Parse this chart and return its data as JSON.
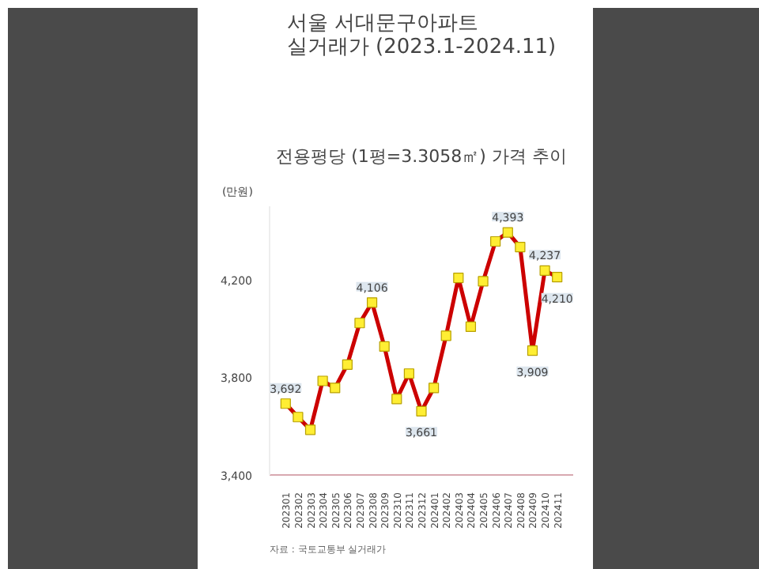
{
  "chart_data": {
    "type": "line",
    "title": "서울 서대문구아파트\n실거래가 (2023.1-2024.11)",
    "subtitle": "전용평당 (1평=3.3058㎡) 가격 추이",
    "ylabel": "(만원)",
    "categories": [
      "202301",
      "202302",
      "202303",
      "202304",
      "202305",
      "202306",
      "202307",
      "202308",
      "202309",
      "202310",
      "202311",
      "202312",
      "202401",
      "202402",
      "202403",
      "202404",
      "202405",
      "202406",
      "202407",
      "202408",
      "202409",
      "202410",
      "202411"
    ],
    "series": [
      {
        "color": "#cc0000",
        "values": [
          3692,
          3637,
          3585,
          3785,
          3756,
          3852,
          4022,
          4106,
          3926,
          3711,
          3815,
          3661,
          3756,
          3970,
          4207,
          4007,
          4193,
          4356,
          4393,
          4333,
          3909,
          4237,
          4210
        ],
        "value_labels": [
          "3,692",
          null,
          null,
          null,
          null,
          null,
          null,
          "4,106",
          null,
          null,
          null,
          "3,661",
          null,
          null,
          null,
          null,
          null,
          null,
          "4,393",
          null,
          "3,909",
          "4,237",
          "4,210"
        ]
      }
    ],
    "ylim": [
      3400,
      4500
    ],
    "yticks": [
      {
        "value": 3400,
        "label": "3,400"
      },
      {
        "value": 3800,
        "label": "3,800"
      },
      {
        "value": 4200,
        "label": "4,200"
      }
    ],
    "marker": "square",
    "grid": false,
    "annotations": [
      "자료 : 국토교통부 실거래가"
    ]
  }
}
